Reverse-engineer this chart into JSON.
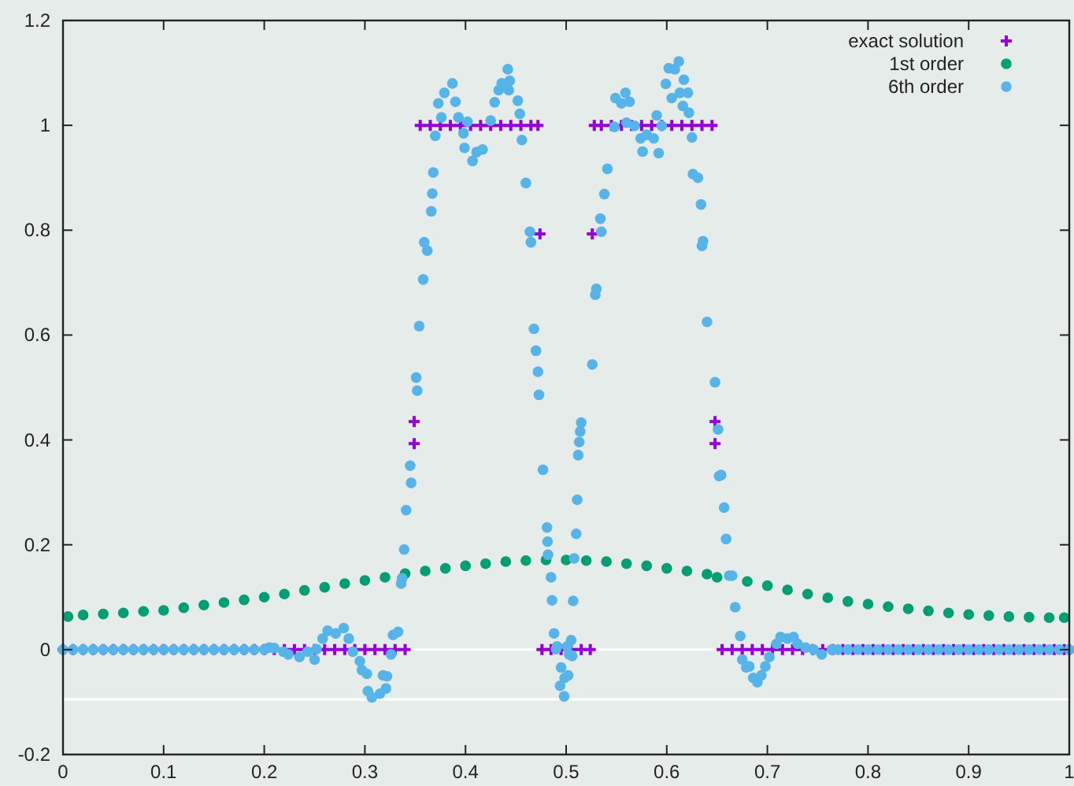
{
  "chart_data": {
    "type": "scatter",
    "xlim": [
      0,
      1
    ],
    "xticks": [
      0,
      0.1,
      0.2,
      0.3,
      0.4,
      0.5,
      0.6,
      0.7,
      0.8,
      0.9,
      1
    ],
    "ylim": [
      -0.2,
      1.2
    ],
    "yticks": [
      -0.2,
      0,
      0.2,
      0.4,
      0.6,
      0.8,
      1,
      1.2
    ],
    "grid": false,
    "legend": "top right",
    "ref_lines": [
      {
        "axis": "y",
        "value": 0,
        "color": "#ffffff"
      },
      {
        "axis": "y",
        "value": -0.095,
        "color": "#ffffff"
      }
    ],
    "series": [
      {
        "name": "exact solution",
        "color": "#9400d3",
        "marker": "cross",
        "x": [
          0,
          0.01,
          0.02,
          0.03,
          0.04,
          0.05,
          0.06,
          0.07,
          0.08,
          0.09,
          0.1,
          0.11,
          0.12,
          0.13,
          0.14,
          0.15,
          0.16,
          0.17,
          0.18,
          0.19,
          0.2,
          0.21,
          0.22,
          0.23,
          0.24,
          0.25,
          0.26,
          0.27,
          0.28,
          0.29,
          0.3,
          0.31,
          0.32,
          0.33,
          0.34,
          0.349,
          0.349,
          0.355,
          0.365,
          0.375,
          0.385,
          0.395,
          0.405,
          0.415,
          0.425,
          0.435,
          0.445,
          0.455,
          0.465,
          0.472,
          0.474,
          0.476,
          0.485,
          0.495,
          0.505,
          0.515,
          0.524,
          0.526,
          0.528,
          0.535,
          0.545,
          0.555,
          0.565,
          0.575,
          0.585,
          0.595,
          0.605,
          0.615,
          0.625,
          0.635,
          0.645,
          0.648,
          0.648,
          0.655,
          0.665,
          0.675,
          0.685,
          0.695,
          0.705,
          0.715,
          0.725,
          0.735,
          0.745,
          0.755,
          0.765,
          0.775,
          0.785,
          0.795,
          0.805,
          0.815,
          0.825,
          0.835,
          0.845,
          0.855,
          0.865,
          0.875,
          0.885,
          0.895,
          0.905,
          0.915,
          0.925,
          0.935,
          0.945,
          0.955,
          0.965,
          0.975,
          0.985,
          0.995,
          1
        ],
        "values": [
          0,
          0,
          0,
          0,
          0,
          0,
          0,
          0,
          0,
          0,
          0,
          0,
          0,
          0,
          0,
          0,
          0,
          0,
          0,
          0,
          0,
          0,
          0,
          0,
          0,
          0,
          0,
          0,
          0,
          0,
          0,
          0,
          0,
          0,
          0,
          0.435,
          0.393,
          1,
          1,
          1,
          1,
          1,
          1,
          1,
          1,
          1,
          1,
          1,
          1,
          1,
          0.793,
          0,
          0,
          0,
          0,
          0,
          0,
          0.793,
          1,
          1,
          1,
          1,
          1,
          1,
          1,
          1,
          1,
          1,
          1,
          1,
          1,
          0.435,
          0.393,
          0,
          0,
          0,
          0,
          0,
          0,
          0,
          0,
          0,
          0,
          0,
          0,
          0,
          0,
          0,
          0,
          0,
          0,
          0,
          0,
          0,
          0,
          0,
          0,
          0,
          0,
          0,
          0,
          0,
          0,
          0,
          0,
          0,
          0,
          0,
          0
        ]
      },
      {
        "name": "1st order",
        "color": "#009e73",
        "marker": "circle",
        "x": [
          0.005,
          0.02,
          0.04,
          0.06,
          0.08,
          0.1,
          0.12,
          0.14,
          0.16,
          0.18,
          0.2,
          0.22,
          0.24,
          0.26,
          0.28,
          0.3,
          0.32,
          0.34,
          0.36,
          0.38,
          0.4,
          0.42,
          0.44,
          0.46,
          0.48,
          0.5,
          0.52,
          0.54,
          0.56,
          0.58,
          0.6,
          0.62,
          0.64,
          0.65,
          0.68,
          0.7,
          0.72,
          0.74,
          0.76,
          0.78,
          0.8,
          0.82,
          0.84,
          0.86,
          0.88,
          0.9,
          0.92,
          0.94,
          0.96,
          0.98,
          0.995
        ],
        "values": [
          0.063,
          0.066,
          0.068,
          0.07,
          0.073,
          0.075,
          0.08,
          0.085,
          0.09,
          0.095,
          0.1,
          0.106,
          0.113,
          0.119,
          0.126,
          0.132,
          0.138,
          0.145,
          0.15,
          0.155,
          0.16,
          0.164,
          0.168,
          0.17,
          0.171,
          0.171,
          0.17,
          0.168,
          0.164,
          0.16,
          0.155,
          0.15,
          0.144,
          0.138,
          0.13,
          0.122,
          0.114,
          0.106,
          0.099,
          0.092,
          0.087,
          0.082,
          0.078,
          0.074,
          0.07,
          0.067,
          0.065,
          0.063,
          0.062,
          0.061,
          0.061
        ]
      },
      {
        "name": "6th order",
        "color": "#56b4e9",
        "marker": "circle",
        "x": [
          0,
          0.01,
          0.02,
          0.03,
          0.04,
          0.05,
          0.06,
          0.07,
          0.08,
          0.09,
          0.1,
          0.11,
          0.12,
          0.13,
          0.14,
          0.15,
          0.16,
          0.17,
          0.18,
          0.19,
          0.2,
          0.205,
          0.21,
          0.219,
          0.224,
          0.235,
          0.243,
          0.25,
          0.252,
          0.258,
          0.263,
          0.271,
          0.279,
          0.284,
          0.288,
          0.295,
          0.297,
          0.302,
          0.303,
          0.307,
          0.315,
          0.318,
          0.321,
          0.322,
          0.326,
          0.328,
          0.333,
          0.336,
          0.337,
          0.339,
          0.341,
          0.345,
          0.346,
          0.351,
          0.352,
          0.354,
          0.358,
          0.359,
          0.362,
          0.366,
          0.367,
          0.368,
          0.37,
          0.373,
          0.376,
          0.379,
          0.387,
          0.39,
          0.393,
          0.398,
          0.399,
          0.402,
          0.407,
          0.411,
          0.417,
          0.425,
          0.429,
          0.433,
          0.436,
          0.442,
          0.443,
          0.444,
          0.452,
          0.454,
          0.456,
          0.46,
          0.464,
          0.465,
          0.468,
          0.47,
          0.472,
          0.473,
          0.477,
          0.481,
          0.4815,
          0.482,
          0.485,
          0.486,
          0.488,
          0.49,
          0.491,
          0.494,
          0.495,
          0.498,
          0.4985,
          0.501,
          0.502,
          0.503,
          0.505,
          0.506,
          0.507,
          0.508,
          0.51,
          0.511,
          0.512,
          0.513,
          0.514,
          0.515,
          0.526,
          0.529,
          0.53,
          0.534,
          0.535,
          0.538,
          0.541,
          0.548,
          0.549,
          0.555,
          0.559,
          0.56,
          0.563,
          0.568,
          0.574,
          0.576,
          0.58,
          0.587,
          0.59,
          0.592,
          0.595,
          0.599,
          0.602,
          0.605,
          0.608,
          0.612,
          0.613,
          0.616,
          0.617,
          0.621,
          0.622,
          0.625,
          0.626,
          0.631,
          0.634,
          0.635,
          0.636,
          0.64,
          0.648,
          0.651,
          0.652,
          0.654,
          0.657,
          0.659,
          0.662,
          0.665,
          0.668,
          0.673,
          0.675,
          0.679,
          0.682,
          0.686,
          0.69,
          0.694,
          0.698,
          0.702,
          0.709,
          0.713,
          0.72,
          0.726,
          0.73,
          0.738,
          0.746,
          0.754,
          0.764,
          0.77,
          0.78,
          0.79,
          0.8,
          0.81,
          0.82,
          0.83,
          0.84,
          0.85,
          0.86,
          0.87,
          0.88,
          0.89,
          0.9,
          0.91,
          0.92,
          0.93,
          0.94,
          0.95,
          0.96,
          0.97,
          0.98,
          0.99,
          1
        ],
        "values": [
          0,
          0,
          0,
          0,
          0,
          0,
          0,
          0,
          0,
          0,
          0,
          0,
          0,
          0,
          0,
          0,
          0,
          0,
          0,
          0,
          0,
          0.004,
          0.003,
          -0.004,
          -0.009,
          -0.014,
          -0.004,
          -0.019,
          0.001,
          0.021,
          0.036,
          0.031,
          0.041,
          0.021,
          -0.004,
          -0.022,
          -0.039,
          -0.046,
          -0.079,
          -0.091,
          -0.084,
          -0.049,
          -0.074,
          -0.051,
          -0.009,
          0.028,
          0.034,
          0.126,
          0.136,
          0.191,
          0.266,
          0.351,
          0.318,
          0.519,
          0.494,
          0.617,
          0.706,
          0.777,
          0.761,
          0.836,
          0.87,
          0.91,
          0.98,
          1.042,
          1.015,
          1.062,
          1.08,
          1.045,
          1.015,
          0.985,
          0.957,
          1.007,
          0.932,
          0.949,
          0.954,
          1.009,
          1.044,
          1.067,
          1.08,
          1.107,
          1.067,
          1.085,
          1.047,
          1.022,
          0.972,
          0.89,
          0.797,
          0.777,
          0.612,
          0.57,
          0.53,
          0.486,
          0.343,
          0.233,
          0.206,
          0.181,
          0.138,
          0.094,
          0.031,
          0.001,
          0.006,
          -0.069,
          -0.034,
          -0.089,
          -0.054,
          0.006,
          -0.049,
          -0.009,
          0.018,
          -0.012,
          0.093,
          0.174,
          0.221,
          0.286,
          0.371,
          0.396,
          0.416,
          0.433,
          0.544,
          0.677,
          0.688,
          0.822,
          0.797,
          0.869,
          0.917,
          0.997,
          1.052,
          1.042,
          1.062,
          1.005,
          1.045,
          0.999,
          0.975,
          0.95,
          0.982,
          0.975,
          1.019,
          0.947,
          0.999,
          1.079,
          1.109,
          1.052,
          1.107,
          1.122,
          1.062,
          1.037,
          1.087,
          1.062,
          1.024,
          0.977,
          0.907,
          0.9,
          0.849,
          0.77,
          0.779,
          0.625,
          0.51,
          0.42,
          0.331,
          0.333,
          0.271,
          0.211,
          0.141,
          0.141,
          0.081,
          0.026,
          -0.019,
          -0.034,
          -0.032,
          -0.054,
          -0.062,
          -0.049,
          -0.032,
          -0.014,
          0.011,
          0.024,
          0.021,
          0.024,
          0.011,
          0.004,
          0,
          -0.009,
          0,
          0,
          0,
          0,
          0,
          0,
          0,
          0,
          0,
          0,
          0,
          0,
          0,
          0,
          0,
          0,
          0,
          0,
          0,
          0,
          0,
          0,
          0,
          0,
          0
        ]
      }
    ]
  }
}
